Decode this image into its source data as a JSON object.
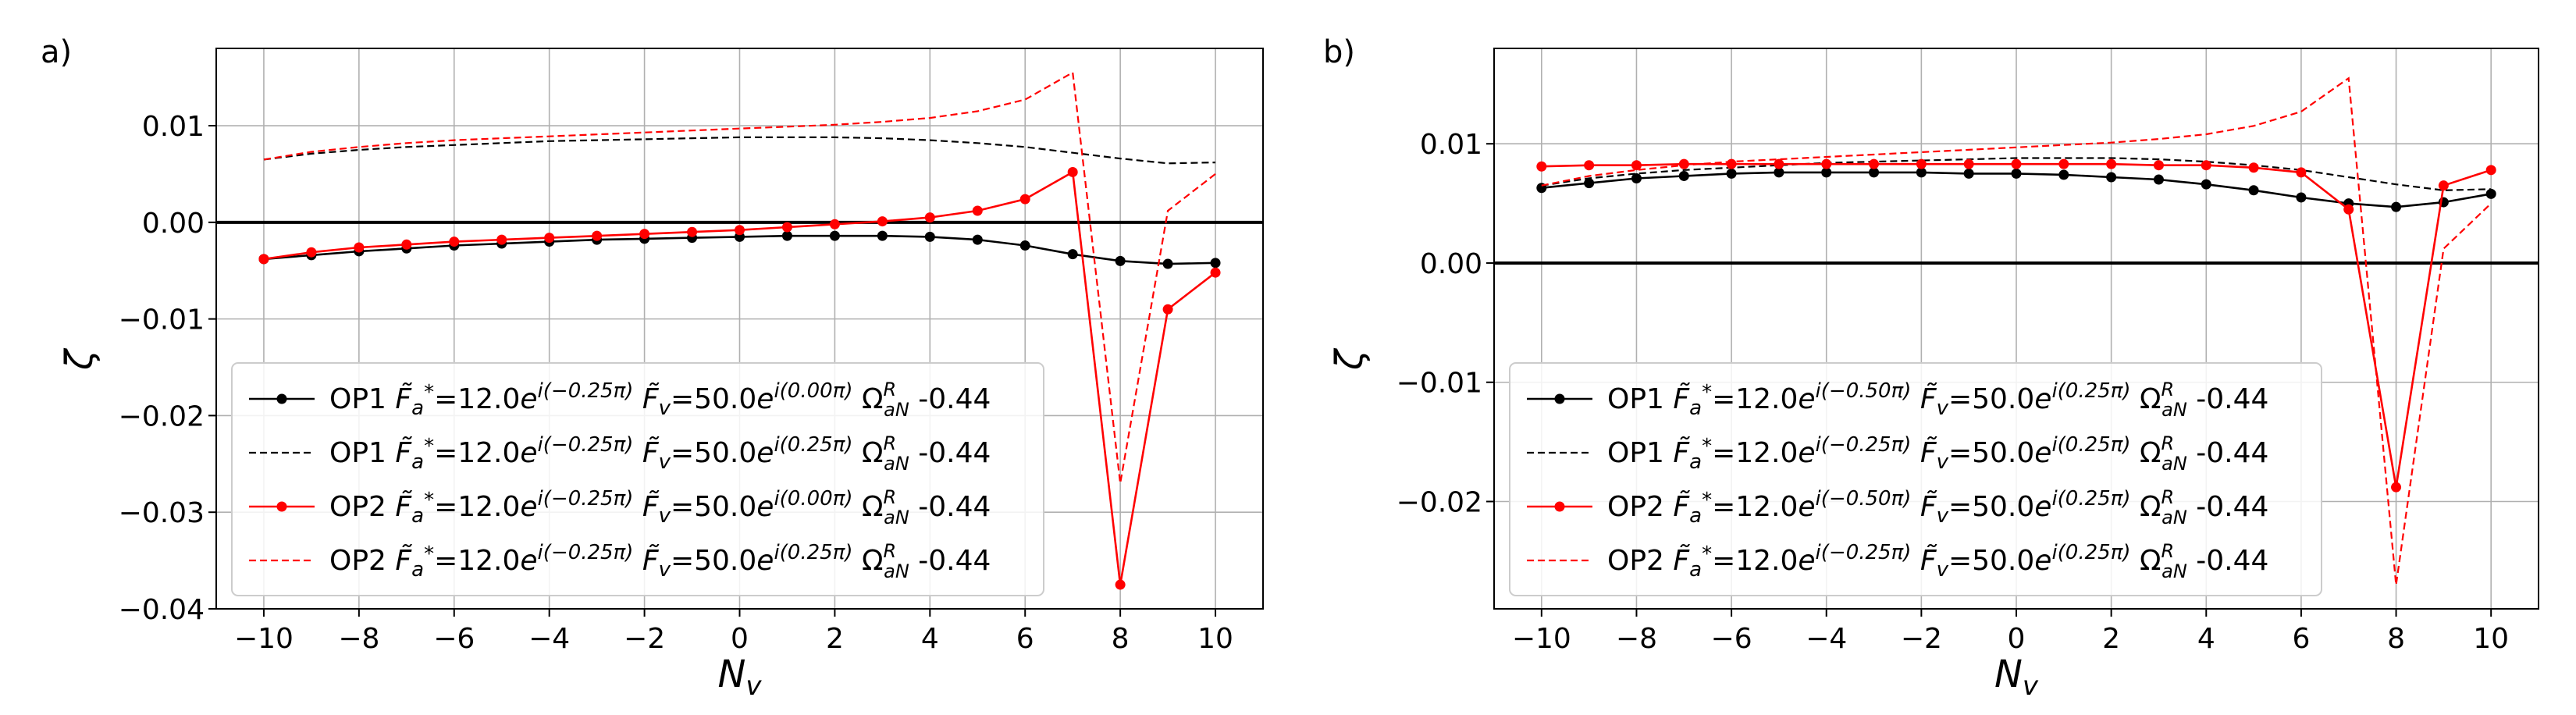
{
  "chart_data": [
    {
      "type": "line",
      "panel_label": "a)",
      "xlabel": "N_v",
      "ylabel": "ζ",
      "xlim": [
        -11,
        11
      ],
      "ylim": [
        -0.04,
        0.018
      ],
      "xticks": [
        -10,
        -8,
        -6,
        -4,
        -2,
        0,
        2,
        4,
        6,
        8,
        10
      ],
      "xtick_labels": [
        "−10",
        "−8",
        "−6",
        "−4",
        "−2",
        "0",
        "2",
        "4",
        "6",
        "8",
        "10"
      ],
      "yticks": [
        0.01,
        0.0,
        -0.01,
        -0.02,
        -0.03,
        -0.04
      ],
      "ytick_labels": [
        "0.01",
        "0.00",
        "−0.01",
        "−0.02",
        "−0.03",
        "−0.04"
      ],
      "grid": true,
      "zero_line": true,
      "legend_position": "lower-left",
      "x": [
        -10,
        -9,
        -8,
        -7,
        -6,
        -5,
        -4,
        -3,
        -2,
        -1,
        0,
        1,
        2,
        3,
        4,
        5,
        6,
        7,
        8,
        9,
        10
      ],
      "series": [
        {
          "name": "OP1 F̃a*=12.0e^{i(−0.25π)} F̃v=50.0e^{i(0.00π)} Ω^R_aN -0.44",
          "op": "OP1",
          "fa_phase": "−0.25π",
          "fv_phase": "0.00π",
          "omega": "-0.44",
          "color": "#000000",
          "style": "solid-marker",
          "values": [
            -0.0038,
            -0.0034,
            -0.003,
            -0.0027,
            -0.0024,
            -0.0022,
            -0.002,
            -0.0018,
            -0.0017,
            -0.0016,
            -0.0015,
            -0.0014,
            -0.0014,
            -0.0014,
            -0.0015,
            -0.0018,
            -0.0024,
            -0.0033,
            -0.004,
            -0.0043,
            -0.0042
          ]
        },
        {
          "name": "OP1 F̃a*=12.0e^{i(−0.25π)} F̃v=50.0e^{i(0.25π)} Ω^R_aN -0.44",
          "op": "OP1",
          "fa_phase": "−0.25π",
          "fv_phase": "0.25π",
          "omega": "-0.44",
          "color": "#000000",
          "style": "dashed",
          "values": [
            0.0065,
            0.0071,
            0.0075,
            0.0078,
            0.008,
            0.0082,
            0.0084,
            0.0085,
            0.0086,
            0.0087,
            0.0088,
            0.0088,
            0.0088,
            0.0087,
            0.0085,
            0.0082,
            0.0078,
            0.0072,
            0.0066,
            0.0061,
            0.0062
          ]
        },
        {
          "name": "OP2 F̃a*=12.0e^{i(−0.25π)} F̃v=50.0e^{i(0.00π)} Ω^R_aN -0.44",
          "op": "OP2",
          "fa_phase": "−0.25π",
          "fv_phase": "0.00π",
          "omega": "-0.44",
          "color": "#ff0000",
          "style": "solid-marker",
          "values": [
            -0.0038,
            -0.0031,
            -0.0026,
            -0.0023,
            -0.002,
            -0.0018,
            -0.0016,
            -0.0014,
            -0.0012,
            -0.001,
            -0.0008,
            -0.0005,
            -0.0002,
            0.0001,
            0.0005,
            0.0012,
            0.0024,
            0.0052,
            -0.0375,
            -0.009,
            -0.0052
          ]
        },
        {
          "name": "OP2 F̃a*=12.0e^{i(−0.25π)} F̃v=50.0e^{i(0.25π)} Ω^R_aN -0.44",
          "op": "OP2",
          "fa_phase": "−0.25π",
          "fv_phase": "0.25π",
          "omega": "-0.44",
          "color": "#ff0000",
          "style": "dashed",
          "values": [
            0.0065,
            0.0073,
            0.0078,
            0.0082,
            0.0085,
            0.0087,
            0.0089,
            0.0091,
            0.0093,
            0.0095,
            0.0097,
            0.0099,
            0.0101,
            0.0104,
            0.0108,
            0.0115,
            0.0127,
            0.0155,
            -0.027,
            0.0012,
            0.005
          ]
        }
      ]
    },
    {
      "type": "line",
      "panel_label": "b)",
      "xlabel": "N_v",
      "ylabel": "ζ",
      "xlim": [
        -11,
        11
      ],
      "ylim": [
        -0.029,
        0.018
      ],
      "xticks": [
        -10,
        -8,
        -6,
        -4,
        -2,
        0,
        2,
        4,
        6,
        8,
        10
      ],
      "xtick_labels": [
        "−10",
        "−8",
        "−6",
        "−4",
        "−2",
        "0",
        "2",
        "4",
        "6",
        "8",
        "10"
      ],
      "yticks": [
        0.01,
        0.0,
        -0.01,
        -0.02
      ],
      "ytick_labels": [
        "0.01",
        "0.00",
        "−0.01",
        "−0.02"
      ],
      "grid": true,
      "zero_line": true,
      "legend_position": "lower-left",
      "x": [
        -10,
        -9,
        -8,
        -7,
        -6,
        -5,
        -4,
        -3,
        -2,
        -1,
        0,
        1,
        2,
        3,
        4,
        5,
        6,
        7,
        8,
        9,
        10
      ],
      "series": [
        {
          "name": "OP1 F̃a*=12.0e^{i(−0.50π)} F̃v=50.0e^{i(0.25π)} Ω^R_aN -0.44",
          "op": "OP1",
          "fa_phase": "−0.50π",
          "fv_phase": "0.25π",
          "omega": "-0.44",
          "color": "#000000",
          "style": "solid-marker",
          "values": [
            0.0063,
            0.0067,
            0.0071,
            0.0073,
            0.0075,
            0.0076,
            0.0076,
            0.0076,
            0.0076,
            0.0075,
            0.0075,
            0.0074,
            0.0072,
            0.007,
            0.0066,
            0.0061,
            0.0055,
            0.005,
            0.0047,
            0.0051,
            0.0058
          ]
        },
        {
          "name": "OP1 F̃a*=12.0e^{i(−0.25π)} F̃v=50.0e^{i(0.25π)} Ω^R_aN -0.44",
          "op": "OP1",
          "fa_phase": "−0.25π",
          "fv_phase": "0.25π",
          "omega": "-0.44",
          "color": "#000000",
          "style": "dashed",
          "values": [
            0.0065,
            0.0071,
            0.0075,
            0.0078,
            0.008,
            0.0082,
            0.0084,
            0.0085,
            0.0086,
            0.0087,
            0.0088,
            0.0088,
            0.0088,
            0.0087,
            0.0085,
            0.0082,
            0.0078,
            0.0072,
            0.0066,
            0.0061,
            0.0062
          ]
        },
        {
          "name": "OP2 F̃a*=12.0e^{i(−0.50π)} F̃v=50.0e^{i(0.25π)} Ω^R_aN -0.44",
          "op": "OP2",
          "fa_phase": "−0.50π",
          "fv_phase": "0.25π",
          "omega": "-0.44",
          "color": "#ff0000",
          "style": "solid-marker",
          "values": [
            0.0081,
            0.0082,
            0.0082,
            0.0083,
            0.0083,
            0.0083,
            0.0083,
            0.0083,
            0.0083,
            0.0083,
            0.0083,
            0.0083,
            0.0083,
            0.0082,
            0.0082,
            0.008,
            0.0076,
            0.0045,
            -0.0188,
            0.0065,
            0.0078
          ]
        },
        {
          "name": "OP2 F̃a*=12.0e^{i(−0.25π)} F̃v=50.0e^{i(0.25π)} Ω^R_aN -0.44",
          "op": "OP2",
          "fa_phase": "−0.25π",
          "fv_phase": "0.25π",
          "omega": "-0.44",
          "color": "#ff0000",
          "style": "dashed",
          "values": [
            0.0065,
            0.0073,
            0.0078,
            0.0082,
            0.0085,
            0.0087,
            0.0089,
            0.0091,
            0.0093,
            0.0095,
            0.0097,
            0.0099,
            0.0101,
            0.0104,
            0.0108,
            0.0115,
            0.0127,
            0.0155,
            -0.027,
            0.0012,
            0.005
          ]
        }
      ]
    }
  ]
}
